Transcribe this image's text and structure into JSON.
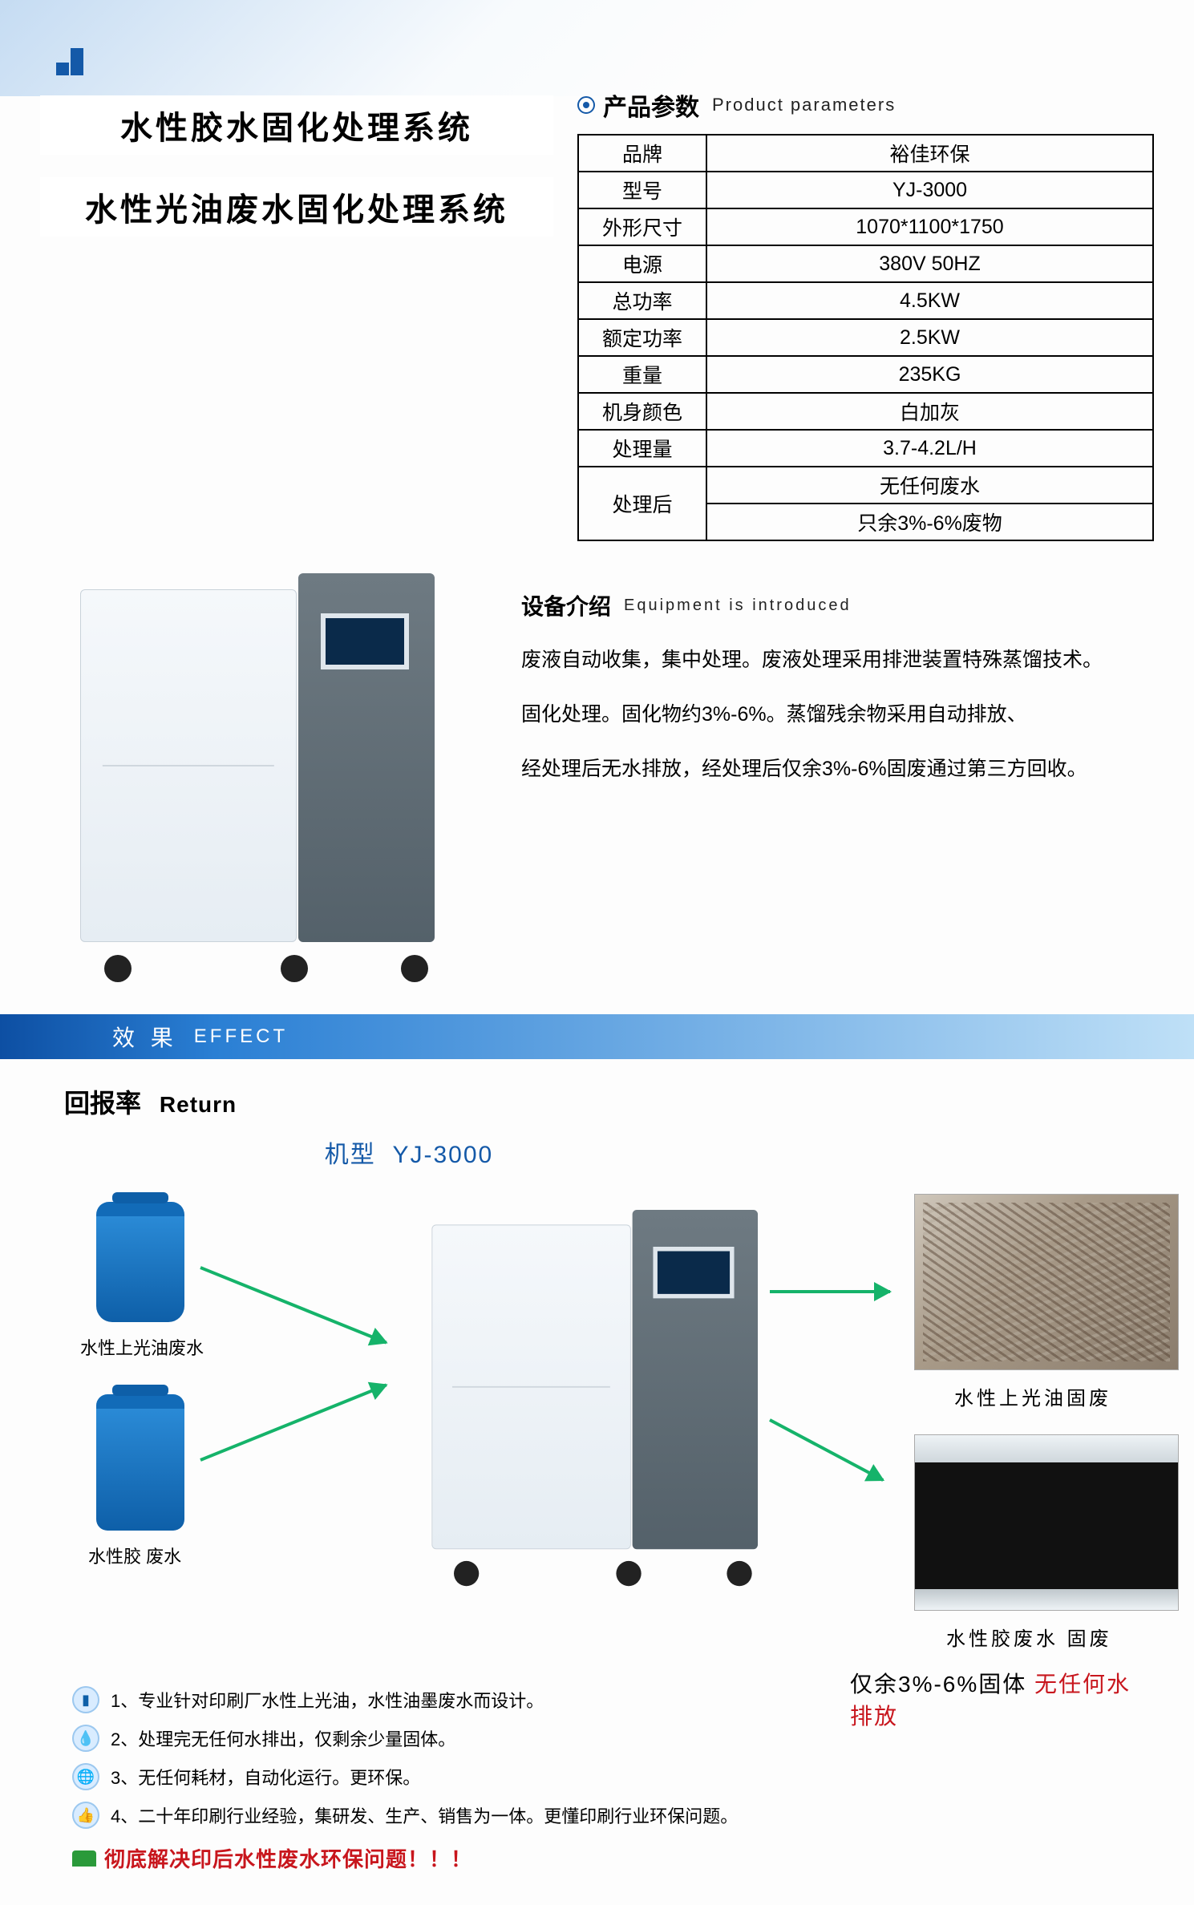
{
  "titles": {
    "line1": "水性胶水固化处理系统",
    "line2": "水性光油废水固化处理系统"
  },
  "params_header": {
    "cn": "产品参数",
    "en": "Product parameters"
  },
  "params": [
    {
      "k": "品牌",
      "v": "裕佳环保"
    },
    {
      "k": "型号",
      "v": "YJ-3000"
    },
    {
      "k": "外形尺寸",
      "v": "1070*1100*1750"
    },
    {
      "k": "电源",
      "v": "380V   50HZ"
    },
    {
      "k": "总功率",
      "v": "4.5KW"
    },
    {
      "k": "额定功率",
      "v": "2.5KW"
    },
    {
      "k": "重量",
      "v": "235KG"
    },
    {
      "k": "机身颜色",
      "v": "白加灰"
    },
    {
      "k": "处理量",
      "v": "3.7-4.2L/H"
    }
  ],
  "params_after": {
    "k": "处理后",
    "v1": "无任何废水",
    "v2": "只余3%-6%废物"
  },
  "intro_header": {
    "cn": "设备介绍",
    "en": "Equipment is introduced"
  },
  "intro": {
    "p1": "废液自动收集，集中处理。废液处理采用排泄装置特殊蒸馏技术。",
    "p2": "固化处理。固化物约3%-6%。蒸馏残余物采用自动排放、",
    "p3": "经处理后无水排放，经处理后仅余3%-6%固废通过第三方回收。"
  },
  "effect": {
    "cn": "效 果",
    "en": "EFFECT"
  },
  "return_hdr": {
    "cn": "回报率",
    "en": "Return"
  },
  "model": {
    "label": "机型",
    "value": "YJ-3000"
  },
  "inputs": {
    "a": "水性上光油废水",
    "b": "水性胶 废水"
  },
  "outputs": {
    "a": "水性上光油固废",
    "b": "水性胶废水 固废"
  },
  "features": {
    "f1": "1、专业针对印刷厂水性上光油，水性油墨废水而设计。",
    "f2": "2、处理完无任何水排出，仅剩余少量固体。",
    "f3": "3、无任何耗材，自动化运行。更环保。",
    "f4": "4、二十年印刷行业经验，集研发、生产、销售为一体。更懂印刷行业环保问题。"
  },
  "conclude": "彻底解决印后水性废水环保问题！！！",
  "summary": {
    "left": "仅余3%-6%固体",
    "right": "无任何水排放"
  },
  "colors": {
    "brand_blue": "#1459a8",
    "arrow_green": "#15b36a",
    "warn_red": "#c8161d"
  }
}
